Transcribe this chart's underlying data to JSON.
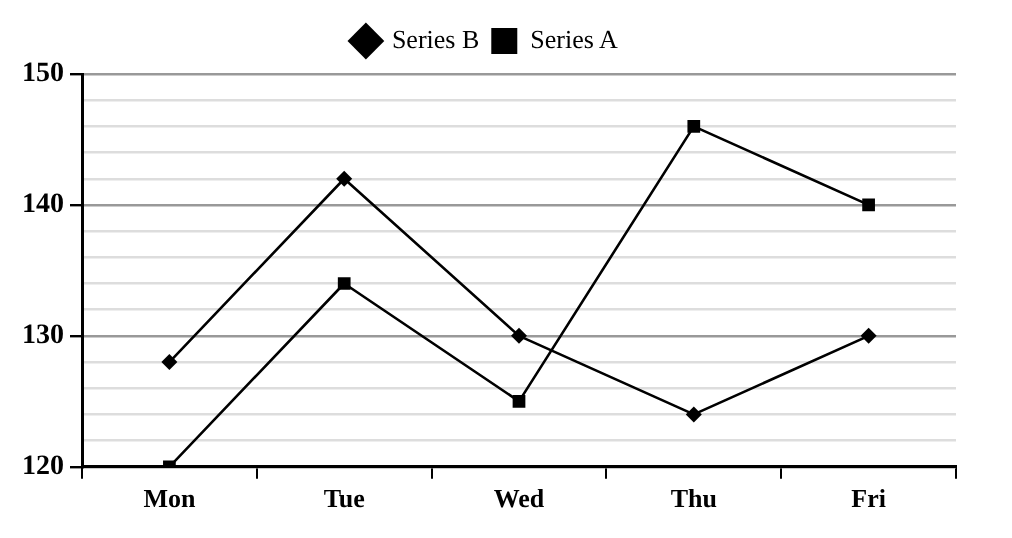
{
  "chart_data": {
    "type": "line",
    "categories": [
      "Mon",
      "Tue",
      "Wed",
      "Thu",
      "Fri"
    ],
    "series": [
      {
        "name": "Series B",
        "color": "#000000",
        "marker": "diamond",
        "values": [
          128,
          142,
          130,
          124,
          130
        ]
      },
      {
        "name": "Series A",
        "color": "#000000",
        "marker": "square",
        "values": [
          120,
          134,
          125,
          146,
          140
        ]
      }
    ],
    "ylim": [
      120,
      150
    ],
    "yticks": [
      120,
      {
        "value": 122,
        "label": null
      },
      {
        "value": 124,
        "label": null
      },
      {
        "value": 126,
        "label": null
      },
      {
        "value": 128,
        "label": null
      },
      130,
      {
        "value": 132,
        "label": null
      },
      {
        "value": 134,
        "label": null
      },
      {
        "value": 136,
        "label": null
      },
      {
        "value": 138,
        "label": null
      },
      140,
      {
        "value": 142,
        "label": null
      },
      {
        "value": 144,
        "label": null
      },
      {
        "value": 146,
        "label": null
      },
      {
        "value": 148,
        "label": null
      },
      150
    ],
    "grid": "y",
    "legend": "top",
    "line_style": "solid"
  }
}
